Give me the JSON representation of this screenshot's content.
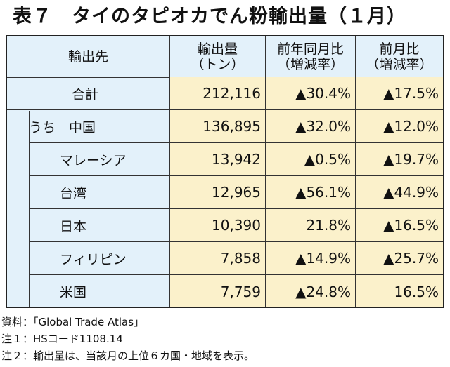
{
  "title": "表７　タイのタピオカでん粉輸出量（１月）",
  "headers": {
    "destination": "輸出先",
    "volume": "輸出量\n（トン）",
    "yoy": "前年同月比\n（増減率）",
    "mom": "前月比\n（増減率）"
  },
  "rows": [
    {
      "label": "合計",
      "volume": "212,116",
      "yoy": "▲30.4%",
      "mom": "▲17.5%"
    },
    {
      "label": "うち　中国",
      "volume": "136,895",
      "yoy": "▲32.0%",
      "mom": "▲12.0%"
    },
    {
      "label": "マレーシア",
      "volume": "13,942",
      "yoy": "▲0.5%",
      "mom": "▲19.7%"
    },
    {
      "label": "台湾",
      "volume": "12,965",
      "yoy": "▲56.1%",
      "mom": "▲44.9%"
    },
    {
      "label": "日本",
      "volume": "10,390",
      "yoy": "21.8%",
      "mom": "▲16.5%"
    },
    {
      "label": "フィリピン",
      "volume": "7,858",
      "yoy": "▲14.9%",
      "mom": "▲25.7%"
    },
    {
      "label": "米国",
      "volume": "7,759",
      "yoy": "▲24.8%",
      "mom": "16.5%"
    }
  ],
  "notes": [
    "資料：「Global Trade Atlas」",
    "注１：HSコード1108.14",
    "注２：輸出量は、当該月の上位６カ国・地域を表示。"
  ]
}
